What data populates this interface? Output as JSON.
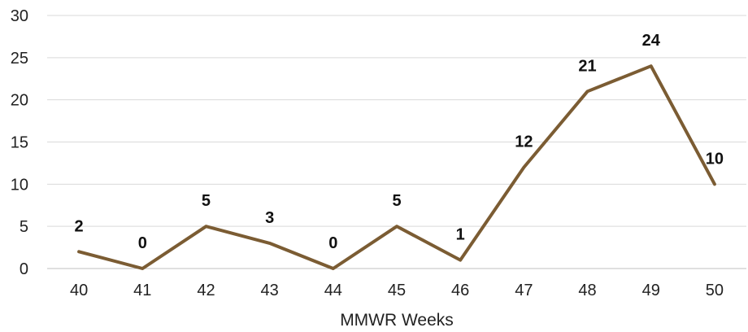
{
  "chart_data": {
    "type": "line",
    "title": "",
    "xlabel": "MMWR Weeks",
    "ylabel": "",
    "x": [
      "40",
      "41",
      "42",
      "43",
      "44",
      "45",
      "46",
      "47",
      "48",
      "49",
      "50"
    ],
    "series": [
      {
        "values": [
          2,
          0,
          5,
          3,
          0,
          5,
          1,
          12,
          21,
          24,
          10
        ],
        "color": "#7b5c33"
      }
    ],
    "ylim": [
      0,
      30
    ],
    "yticks": [
      0,
      5,
      10,
      15,
      20,
      25,
      30
    ],
    "grid": "horizontal",
    "data_labels": true,
    "legend": "none"
  }
}
